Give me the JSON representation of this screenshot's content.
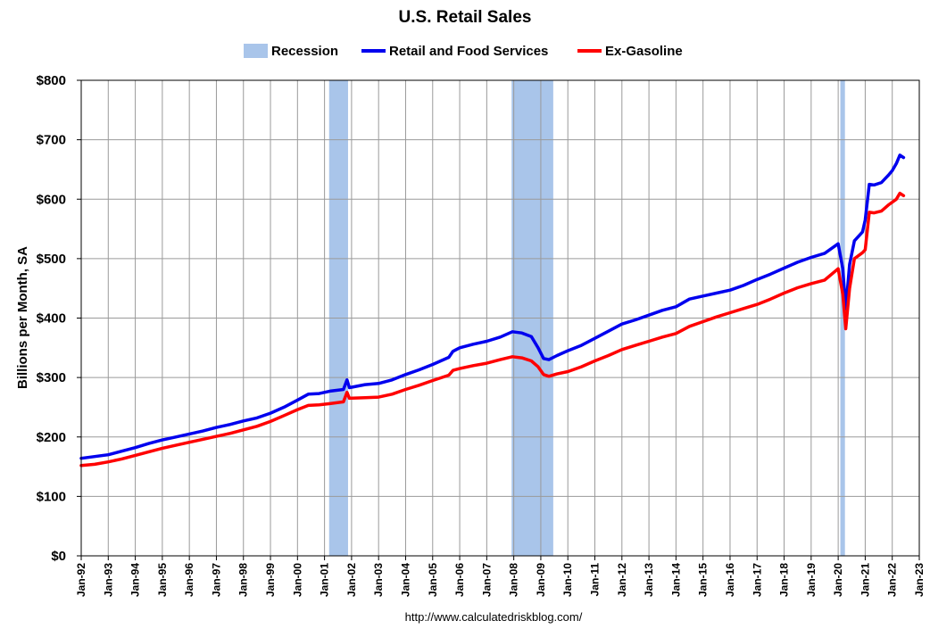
{
  "chart_data": {
    "type": "line",
    "title": "U.S. Retail Sales",
    "ylabel": "Billions per Month, SA",
    "xlabel": "",
    "source_text": "http://www.calculatedriskblog.com/",
    "ylim": [
      0,
      800
    ],
    "yticks": [
      0,
      100,
      200,
      300,
      400,
      500,
      600,
      700,
      800
    ],
    "ytick_labels": [
      "$0",
      "$100",
      "$200",
      "$300",
      "$400",
      "$500",
      "$600",
      "$700",
      "$800"
    ],
    "xlim": [
      1992.0,
      2023.0
    ],
    "xtick_labels": [
      "Jan-92",
      "Jan-93",
      "Jan-94",
      "Jan-95",
      "Jan-96",
      "Jan-97",
      "Jan-98",
      "Jan-99",
      "Jan-00",
      "Jan-01",
      "Jan-02",
      "Jan-03",
      "Jan-04",
      "Jan-05",
      "Jan-06",
      "Jan-07",
      "Jan-08",
      "Jan-09",
      "Jan-10",
      "Jan-11",
      "Jan-12",
      "Jan-13",
      "Jan-14",
      "Jan-15",
      "Jan-16",
      "Jan-17",
      "Jan-18",
      "Jan-19",
      "Jan-20",
      "Jan-21",
      "Jan-22",
      "Jan-23"
    ],
    "grid": true,
    "legend": {
      "placement": "top",
      "entries": [
        {
          "label": "Recession",
          "kind": "band",
          "color": "#a9c5ea"
        },
        {
          "label": "Retail and Food Services",
          "kind": "line",
          "color": "#0000ee"
        },
        {
          "label": "Ex-Gasoline",
          "kind": "line",
          "color": "#ff0000"
        }
      ]
    },
    "recessions": [
      {
        "start": "Mar-01",
        "end": "Nov-01",
        "x0": 2001.17,
        "x1": 2001.87
      },
      {
        "start": "Dec-07",
        "end": "Jun-09",
        "x0": 2007.92,
        "x1": 2009.46
      },
      {
        "start": "Feb-20",
        "end": "Apr-20",
        "x0": 2020.08,
        "x1": 2020.25
      }
    ],
    "series": [
      {
        "name": "Retail and Food Services",
        "color": "#0000ee",
        "points": [
          [
            1992.0,
            164
          ],
          [
            1992.5,
            167
          ],
          [
            1993.0,
            170
          ],
          [
            1993.5,
            176
          ],
          [
            1994.0,
            182
          ],
          [
            1994.5,
            189
          ],
          [
            1995.0,
            195
          ],
          [
            1995.5,
            200
          ],
          [
            1996.0,
            205
          ],
          [
            1996.5,
            210
          ],
          [
            1997.0,
            216
          ],
          [
            1997.5,
            221
          ],
          [
            1998.0,
            227
          ],
          [
            1998.5,
            232
          ],
          [
            1999.0,
            240
          ],
          [
            1999.5,
            250
          ],
          [
            2000.0,
            262
          ],
          [
            2000.4,
            272
          ],
          [
            2000.8,
            273
          ],
          [
            2001.2,
            277
          ],
          [
            2001.7,
            280
          ],
          [
            2001.83,
            296
          ],
          [
            2001.92,
            283
          ],
          [
            2002.5,
            288
          ],
          [
            2003.0,
            290
          ],
          [
            2003.5,
            296
          ],
          [
            2004.0,
            305
          ],
          [
            2004.5,
            313
          ],
          [
            2005.0,
            322
          ],
          [
            2005.6,
            334
          ],
          [
            2005.75,
            344
          ],
          [
            2006.0,
            350
          ],
          [
            2006.5,
            356
          ],
          [
            2007.0,
            361
          ],
          [
            2007.5,
            368
          ],
          [
            2007.95,
            377
          ],
          [
            2008.3,
            375
          ],
          [
            2008.65,
            369
          ],
          [
            2008.9,
            350
          ],
          [
            2009.1,
            332
          ],
          [
            2009.3,
            330
          ],
          [
            2009.6,
            337
          ],
          [
            2010.0,
            345
          ],
          [
            2010.5,
            354
          ],
          [
            2011.0,
            366
          ],
          [
            2011.5,
            378
          ],
          [
            2012.0,
            390
          ],
          [
            2012.5,
            397
          ],
          [
            2013.0,
            405
          ],
          [
            2013.5,
            413
          ],
          [
            2014.0,
            419
          ],
          [
            2014.5,
            432
          ],
          [
            2015.0,
            437
          ],
          [
            2015.5,
            442
          ],
          [
            2016.0,
            447
          ],
          [
            2016.5,
            455
          ],
          [
            2017.0,
            465
          ],
          [
            2017.5,
            474
          ],
          [
            2018.0,
            484
          ],
          [
            2018.5,
            494
          ],
          [
            2019.0,
            502
          ],
          [
            2019.5,
            509
          ],
          [
            2020.0,
            525
          ],
          [
            2020.17,
            483
          ],
          [
            2020.28,
            415
          ],
          [
            2020.42,
            490
          ],
          [
            2020.6,
            530
          ],
          [
            2020.9,
            545
          ],
          [
            2021.0,
            565
          ],
          [
            2021.15,
            625
          ],
          [
            2021.33,
            624
          ],
          [
            2021.6,
            628
          ],
          [
            2021.85,
            640
          ],
          [
            2022.0,
            648
          ],
          [
            2022.15,
            660
          ],
          [
            2022.28,
            674
          ],
          [
            2022.42,
            670
          ]
        ]
      },
      {
        "name": "Ex-Gasoline",
        "color": "#ff0000",
        "points": [
          [
            1992.0,
            152
          ],
          [
            1992.5,
            154
          ],
          [
            1993.0,
            158
          ],
          [
            1993.5,
            163
          ],
          [
            1994.0,
            169
          ],
          [
            1994.5,
            175
          ],
          [
            1995.0,
            181
          ],
          [
            1995.5,
            186
          ],
          [
            1996.0,
            191
          ],
          [
            1996.5,
            196
          ],
          [
            1997.0,
            201
          ],
          [
            1997.5,
            206
          ],
          [
            1998.0,
            212
          ],
          [
            1998.5,
            218
          ],
          [
            1999.0,
            226
          ],
          [
            1999.5,
            236
          ],
          [
            2000.0,
            246
          ],
          [
            2000.4,
            253
          ],
          [
            2000.8,
            254
          ],
          [
            2001.2,
            256
          ],
          [
            2001.7,
            259
          ],
          [
            2001.83,
            275
          ],
          [
            2001.92,
            265
          ],
          [
            2002.5,
            266
          ],
          [
            2003.0,
            267
          ],
          [
            2003.5,
            272
          ],
          [
            2004.0,
            280
          ],
          [
            2004.5,
            287
          ],
          [
            2005.0,
            295
          ],
          [
            2005.6,
            304
          ],
          [
            2005.75,
            312
          ],
          [
            2006.0,
            315
          ],
          [
            2006.5,
            320
          ],
          [
            2007.0,
            324
          ],
          [
            2007.5,
            330
          ],
          [
            2007.95,
            335
          ],
          [
            2008.3,
            333
          ],
          [
            2008.65,
            328
          ],
          [
            2008.9,
            318
          ],
          [
            2009.1,
            305
          ],
          [
            2009.3,
            302
          ],
          [
            2009.6,
            306
          ],
          [
            2010.0,
            310
          ],
          [
            2010.5,
            318
          ],
          [
            2011.0,
            328
          ],
          [
            2011.5,
            337
          ],
          [
            2012.0,
            347
          ],
          [
            2012.5,
            354
          ],
          [
            2013.0,
            361
          ],
          [
            2013.5,
            368
          ],
          [
            2014.0,
            374
          ],
          [
            2014.5,
            386
          ],
          [
            2015.0,
            394
          ],
          [
            2015.5,
            402
          ],
          [
            2016.0,
            409
          ],
          [
            2016.5,
            416
          ],
          [
            2017.0,
            423
          ],
          [
            2017.5,
            432
          ],
          [
            2018.0,
            442
          ],
          [
            2018.5,
            451
          ],
          [
            2019.0,
            458
          ],
          [
            2019.5,
            464
          ],
          [
            2020.0,
            483
          ],
          [
            2020.17,
            440
          ],
          [
            2020.28,
            382
          ],
          [
            2020.42,
            450
          ],
          [
            2020.6,
            500
          ],
          [
            2020.9,
            510
          ],
          [
            2021.0,
            515
          ],
          [
            2021.15,
            578
          ],
          [
            2021.33,
            577
          ],
          [
            2021.6,
            580
          ],
          [
            2021.85,
            590
          ],
          [
            2022.0,
            595
          ],
          [
            2022.15,
            600
          ],
          [
            2022.28,
            610
          ],
          [
            2022.42,
            606
          ]
        ]
      }
    ]
  }
}
